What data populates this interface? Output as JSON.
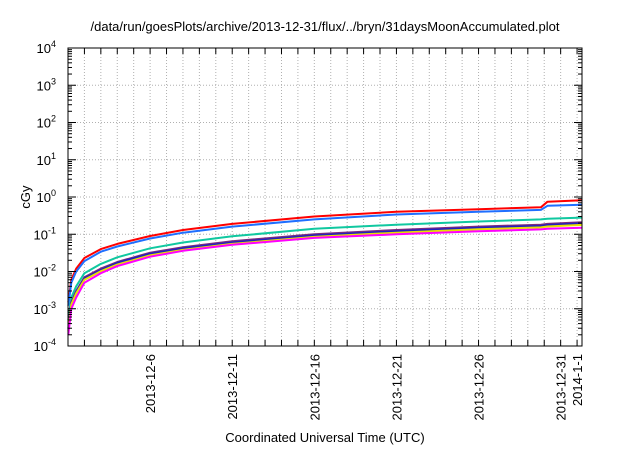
{
  "chart_data": {
    "type": "line",
    "title": "/data/run/goesPlots/archive/2013-12-31/flux/../bryn/31daysMoonAccumulated.plot",
    "xlabel": "Coordinated Universal Time (UTC)",
    "ylabel": "cGy",
    "yscale": "log",
    "ylim": [
      0.0001,
      10000
    ],
    "xlim_days_from_2013_12_01": [
      0,
      31.3
    ],
    "grid": true,
    "yticks": [
      {
        "base": "10",
        "exp": "4"
      },
      {
        "base": "10",
        "exp": "3"
      },
      {
        "base": "10",
        "exp": "2"
      },
      {
        "base": "10",
        "exp": "1"
      },
      {
        "base": "10",
        "exp": "0"
      },
      {
        "base": "10",
        "exp": "-1"
      },
      {
        "base": "10",
        "exp": "-2"
      },
      {
        "base": "10",
        "exp": "-3"
      },
      {
        "base": "10",
        "exp": "-4"
      }
    ],
    "xticks": [
      {
        "day": 5,
        "label": "2013-12-6"
      },
      {
        "day": 10,
        "label": "2013-12-11"
      },
      {
        "day": 15,
        "label": "2013-12-16"
      },
      {
        "day": 20,
        "label": "2013-12-21"
      },
      {
        "day": 25,
        "label": "2013-12-26"
      },
      {
        "day": 30,
        "label": "2013-12-31"
      },
      {
        "day": 31,
        "label": "2014-1-1"
      }
    ],
    "x": [
      0.02,
      0.2,
      0.5,
      1,
      2,
      3,
      5,
      7,
      10,
      15,
      20,
      25,
      28.8,
      29.2,
      31.3
    ],
    "series": [
      {
        "name": "red",
        "color": "#ff0000",
        "values": [
          0.0015,
          0.006,
          0.012,
          0.023,
          0.04,
          0.055,
          0.09,
          0.13,
          0.19,
          0.3,
          0.4,
          0.47,
          0.53,
          0.75,
          0.82
        ]
      },
      {
        "name": "blue",
        "color": "#1f6fff",
        "values": [
          0.0012,
          0.005,
          0.01,
          0.019,
          0.034,
          0.047,
          0.077,
          0.11,
          0.16,
          0.25,
          0.34,
          0.4,
          0.45,
          0.58,
          0.62
        ]
      },
      {
        "name": "teal",
        "color": "#10c8a0",
        "values": [
          0.0005,
          0.002,
          0.004,
          0.009,
          0.016,
          0.024,
          0.042,
          0.06,
          0.088,
          0.14,
          0.18,
          0.22,
          0.25,
          0.26,
          0.28
        ]
      },
      {
        "name": "purple",
        "color": "#7a2a80",
        "values": [
          0.0003,
          0.0015,
          0.003,
          0.007,
          0.012,
          0.018,
          0.032,
          0.045,
          0.065,
          0.1,
          0.13,
          0.16,
          0.18,
          0.19,
          0.21
        ]
      },
      {
        "name": "navy",
        "color": "#2020c0",
        "values": [
          0.00028,
          0.0014,
          0.0028,
          0.0065,
          0.011,
          0.017,
          0.03,
          0.042,
          0.06,
          0.093,
          0.12,
          0.15,
          0.167,
          0.177,
          0.195
        ]
      },
      {
        "name": "yellow",
        "color": "#e8e000",
        "values": [
          0.00025,
          0.0013,
          0.0026,
          0.006,
          0.0102,
          0.0153,
          0.027,
          0.038,
          0.055,
          0.085,
          0.11,
          0.136,
          0.153,
          0.161,
          0.178
        ]
      },
      {
        "name": "magenta",
        "color": "#ff00ff",
        "values": [
          0.0002,
          0.001,
          0.002,
          0.005,
          0.009,
          0.014,
          0.025,
          0.036,
          0.052,
          0.08,
          0.1,
          0.12,
          0.135,
          0.14,
          0.15
        ]
      }
    ]
  }
}
